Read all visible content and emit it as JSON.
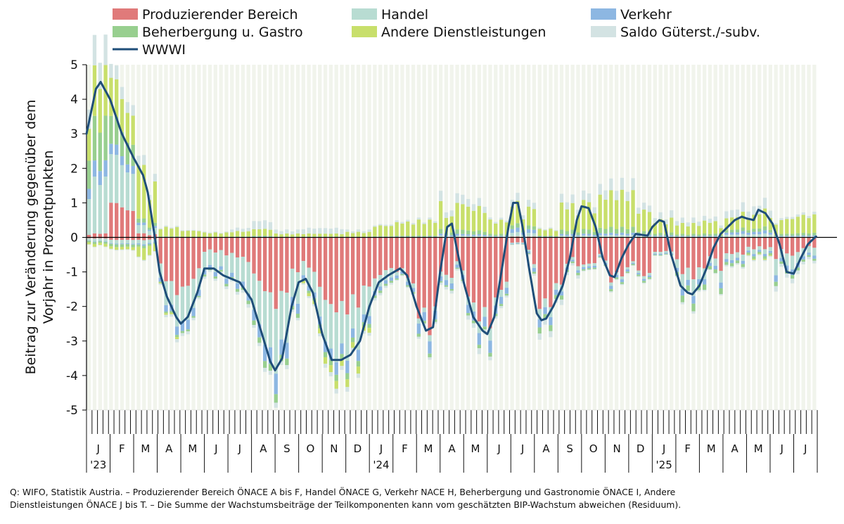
{
  "chart_data": {
    "type": "bar",
    "stacked": true,
    "ylabel_lines": [
      "Beitrag zur Veränderung gegenüber dem",
      "Vorjahr in Prozentpunkten"
    ],
    "ylim": [
      -5,
      5
    ],
    "yticks": [
      5,
      4,
      3,
      2,
      1,
      0,
      -1,
      -2,
      -3,
      -4,
      -5
    ],
    "grid": "vertical light bands",
    "legend_position": "top",
    "month_labels": [
      "J",
      "F",
      "M",
      "A",
      "M",
      "J",
      "J",
      "A",
      "S",
      "O",
      "N",
      "D",
      "J",
      "F",
      "M",
      "A",
      "M",
      "J",
      "J",
      "A",
      "S",
      "O",
      "N",
      "D",
      "J",
      "F",
      "M",
      "A",
      "M",
      "J",
      "J"
    ],
    "year_labels": [
      {
        "label": "'23",
        "month_index": 0
      },
      {
        "label": "'24",
        "month_index": 12
      },
      {
        "label": "'25",
        "month_index": 24
      }
    ],
    "weeks_per_month": 4.3,
    "series": [
      {
        "name": "Produzierender Bereich",
        "color": "#e07a7a",
        "kind": "bar"
      },
      {
        "name": "Handel",
        "color": "#b8dcd2",
        "kind": "bar"
      },
      {
        "name": "Verkehr",
        "color": "#8db7e2",
        "kind": "bar"
      },
      {
        "name": "Beherbergung u. Gastro",
        "color": "#98cf8f",
        "kind": "bar"
      },
      {
        "name": "Andere Dienstleistungen",
        "color": "#c8df6b",
        "kind": "bar"
      },
      {
        "name": "Saldo Güterst./-subv.",
        "color": "#d3e3e3",
        "kind": "bar"
      },
      {
        "name": "WWWI",
        "color": "#1f4e79",
        "kind": "line"
      }
    ],
    "wwwi_anchors": [
      [
        0.0,
        3.0
      ],
      [
        0.4,
        4.3
      ],
      [
        0.6,
        4.5
      ],
      [
        1.0,
        4.0
      ],
      [
        1.5,
        3.0
      ],
      [
        2.0,
        2.3
      ],
      [
        2.4,
        1.8
      ],
      [
        2.6,
        1.3
      ],
      [
        2.9,
        0.0
      ],
      [
        3.1,
        -1.0
      ],
      [
        3.4,
        -1.7
      ],
      [
        3.8,
        -2.3
      ],
      [
        4.0,
        -2.5
      ],
      [
        4.3,
        -2.3
      ],
      [
        4.7,
        -1.6
      ],
      [
        5.0,
        -0.9
      ],
      [
        5.4,
        -0.9
      ],
      [
        5.8,
        -1.1
      ],
      [
        6.5,
        -1.3
      ],
      [
        7.0,
        -1.8
      ],
      [
        7.4,
        -2.7
      ],
      [
        7.8,
        -3.6
      ],
      [
        8.0,
        -3.85
      ],
      [
        8.3,
        -3.5
      ],
      [
        8.7,
        -2.0
      ],
      [
        9.0,
        -1.3
      ],
      [
        9.3,
        -1.2
      ],
      [
        9.6,
        -1.6
      ],
      [
        10.0,
        -2.8
      ],
      [
        10.4,
        -3.55
      ],
      [
        10.8,
        -3.55
      ],
      [
        11.2,
        -3.4
      ],
      [
        11.6,
        -3.0
      ],
      [
        12.0,
        -2.0
      ],
      [
        12.4,
        -1.3
      ],
      [
        12.8,
        -1.1
      ],
      [
        13.3,
        -0.9
      ],
      [
        13.6,
        -1.1
      ],
      [
        14.0,
        -2.0
      ],
      [
        14.4,
        -2.7
      ],
      [
        14.7,
        -2.6
      ],
      [
        15.0,
        -1.0
      ],
      [
        15.3,
        0.3
      ],
      [
        15.5,
        0.4
      ],
      [
        15.7,
        -0.3
      ],
      [
        16.0,
        -1.3
      ],
      [
        16.4,
        -2.3
      ],
      [
        16.8,
        -2.7
      ],
      [
        17.0,
        -2.8
      ],
      [
        17.3,
        -2.3
      ],
      [
        17.6,
        -1.0
      ],
      [
        17.9,
        0.3
      ],
      [
        18.1,
        1.0
      ],
      [
        18.3,
        1.0
      ],
      [
        18.5,
        0.3
      ],
      [
        18.8,
        -1.0
      ],
      [
        19.1,
        -2.2
      ],
      [
        19.3,
        -2.4
      ],
      [
        19.5,
        -2.35
      ],
      [
        19.8,
        -2.0
      ],
      [
        20.2,
        -1.4
      ],
      [
        20.5,
        -0.6
      ],
      [
        20.8,
        0.5
      ],
      [
        21.0,
        0.9
      ],
      [
        21.3,
        0.85
      ],
      [
        21.6,
        0.3
      ],
      [
        21.9,
        -0.6
      ],
      [
        22.2,
        -1.1
      ],
      [
        22.4,
        -1.15
      ],
      [
        22.7,
        -0.6
      ],
      [
        23.0,
        -0.2
      ],
      [
        23.3,
        0.1
      ],
      [
        23.8,
        0.05
      ],
      [
        24.0,
        0.3
      ],
      [
        24.3,
        0.5
      ],
      [
        24.5,
        0.45
      ],
      [
        24.8,
        -0.5
      ],
      [
        25.2,
        -1.4
      ],
      [
        25.5,
        -1.6
      ],
      [
        25.7,
        -1.65
      ],
      [
        26.0,
        -1.4
      ],
      [
        26.3,
        -0.9
      ],
      [
        26.6,
        -0.3
      ],
      [
        26.9,
        0.1
      ],
      [
        27.2,
        0.3
      ],
      [
        27.5,
        0.5
      ],
      [
        27.8,
        0.6
      ],
      [
        28.0,
        0.55
      ],
      [
        28.3,
        0.5
      ],
      [
        28.5,
        0.8
      ],
      [
        28.8,
        0.7
      ],
      [
        29.1,
        0.4
      ],
      [
        29.4,
        -0.2
      ],
      [
        29.7,
        -1.0
      ],
      [
        30.0,
        -1.05
      ],
      [
        30.3,
        -0.6
      ],
      [
        30.6,
        -0.2
      ],
      [
        30.9,
        0.0
      ],
      [
        31.0,
        0.05
      ]
    ],
    "shares_by_month": [
      [
        0.12,
        0.3,
        0.05,
        0.2,
        0.28,
        0.05
      ],
      [
        0.2,
        0.28,
        0.06,
        0.2,
        0.21,
        0.05
      ],
      [
        0.12,
        0.18,
        0.06,
        0.1,
        0.5,
        0.04
      ],
      [
        0.55,
        0.3,
        0.08,
        0.02,
        0.02,
        0.03
      ],
      [
        0.5,
        0.35,
        0.1,
        0.02,
        0.0,
        0.03
      ],
      [
        0.35,
        0.45,
        0.1,
        0.05,
        0.0,
        0.05
      ],
      [
        0.35,
        0.45,
        0.1,
        0.05,
        0.0,
        0.05
      ],
      [
        0.4,
        0.4,
        0.12,
        0.05,
        0.0,
        0.03
      ],
      [
        0.42,
        0.38,
        0.12,
        0.05,
        0.0,
        0.03
      ],
      [
        0.5,
        0.3,
        0.08,
        0.04,
        0.05,
        0.03
      ],
      [
        0.48,
        0.32,
        0.08,
        0.04,
        0.05,
        0.03
      ],
      [
        0.5,
        0.3,
        0.08,
        0.04,
        0.05,
        0.03
      ],
      [
        0.65,
        0.2,
        0.07,
        0.04,
        0.0,
        0.04
      ],
      [
        0.8,
        0.08,
        0.07,
        0.03,
        0.0,
        0.02
      ],
      [
        0.8,
        0.05,
        0.1,
        0.03,
        0.0,
        0.02
      ],
      [
        0.72,
        0.1,
        0.1,
        0.03,
        0.0,
        0.05
      ],
      [
        0.72,
        0.1,
        0.1,
        0.03,
        0.0,
        0.05
      ],
      [
        0.74,
        0.1,
        0.1,
        0.03,
        0.0,
        0.03
      ],
      [
        0.7,
        0.1,
        0.1,
        0.05,
        0.0,
        0.05
      ],
      [
        0.7,
        0.1,
        0.08,
        0.06,
        0.0,
        0.06
      ],
      [
        0.7,
        0.1,
        0.06,
        0.06,
        0.0,
        0.08
      ],
      [
        0.8,
        0.08,
        0.06,
        0.04,
        0.0,
        0.02
      ],
      [
        0.82,
        0.06,
        0.06,
        0.04,
        0.0,
        0.02
      ],
      [
        0.84,
        0.06,
        0.04,
        0.04,
        0.0,
        0.02
      ],
      [
        0.78,
        0.1,
        0.06,
        0.04,
        0.0,
        0.02
      ],
      [
        0.55,
        0.22,
        0.1,
        0.1,
        0.0,
        0.03
      ],
      [
        0.58,
        0.2,
        0.1,
        0.1,
        0.0,
        0.02
      ],
      [
        0.55,
        0.2,
        0.1,
        0.1,
        0.0,
        0.05
      ],
      [
        0.5,
        0.2,
        0.1,
        0.1,
        0.05,
        0.05
      ],
      [
        0.4,
        0.3,
        0.12,
        0.08,
        0.0,
        0.1
      ],
      [
        0.4,
        0.3,
        0.12,
        0.08,
        0.0,
        0.1
      ]
    ],
    "pos_shares_by_month": [
      [
        0.02,
        0.28,
        0.08,
        0.22,
        0.25,
        0.15
      ],
      [
        0.2,
        0.28,
        0.06,
        0.16,
        0.22,
        0.08
      ],
      [
        0.05,
        0.1,
        0.03,
        0.05,
        0.65,
        0.12
      ],
      [
        0.0,
        0.02,
        0.02,
        0.06,
        0.8,
        0.1
      ],
      [
        0.0,
        0.02,
        0.02,
        0.06,
        0.8,
        0.1
      ],
      [
        0.0,
        0.02,
        0.02,
        0.06,
        0.75,
        0.15
      ],
      [
        0.0,
        0.02,
        0.02,
        0.06,
        0.55,
        0.35
      ],
      [
        0.0,
        0.02,
        0.02,
        0.06,
        0.4,
        0.5
      ],
      [
        0.0,
        0.02,
        0.02,
        0.06,
        0.4,
        0.5
      ],
      [
        0.0,
        0.02,
        0.02,
        0.06,
        0.3,
        0.6
      ],
      [
        0.0,
        0.02,
        0.02,
        0.06,
        0.3,
        0.6
      ],
      [
        0.0,
        0.02,
        0.02,
        0.06,
        0.6,
        0.3
      ],
      [
        0.0,
        0.02,
        0.02,
        0.06,
        0.8,
        0.1
      ],
      [
        0.0,
        0.02,
        0.02,
        0.06,
        0.8,
        0.1
      ],
      [
        0.0,
        0.02,
        0.02,
        0.06,
        0.8,
        0.1
      ],
      [
        0.0,
        0.04,
        0.04,
        0.1,
        0.6,
        0.22
      ],
      [
        0.0,
        0.04,
        0.04,
        0.1,
        0.62,
        0.2
      ],
      [
        0.0,
        0.04,
        0.04,
        0.1,
        0.72,
        0.1
      ],
      [
        0.02,
        0.1,
        0.1,
        0.1,
        0.5,
        0.18
      ],
      [
        0.0,
        0.04,
        0.04,
        0.1,
        0.7,
        0.12
      ],
      [
        0.0,
        0.04,
        0.04,
        0.1,
        0.62,
        0.2
      ],
      [
        0.0,
        0.04,
        0.04,
        0.1,
        0.62,
        0.2
      ],
      [
        0.0,
        0.04,
        0.04,
        0.1,
        0.62,
        0.2
      ],
      [
        0.0,
        0.04,
        0.04,
        0.1,
        0.62,
        0.2
      ],
      [
        0.0,
        0.04,
        0.04,
        0.1,
        0.55,
        0.27
      ],
      [
        0.0,
        0.04,
        0.04,
        0.1,
        0.55,
        0.27
      ],
      [
        0.0,
        0.04,
        0.04,
        0.1,
        0.6,
        0.22
      ],
      [
        0.0,
        0.1,
        0.08,
        0.1,
        0.45,
        0.27
      ],
      [
        0.0,
        0.1,
        0.08,
        0.1,
        0.45,
        0.27
      ],
      [
        0.0,
        0.04,
        0.04,
        0.1,
        0.72,
        0.1
      ],
      [
        0.0,
        0.04,
        0.04,
        0.1,
        0.72,
        0.1
      ]
    ],
    "pos_totals_by_month": [
      3.9,
      4.5,
      1.6,
      0.3,
      0.2,
      0.15,
      0.25,
      0.45,
      0.2,
      0.25,
      0.25,
      0.2,
      0.35,
      0.45,
      0.5,
      1.2,
      1.0,
      0.5,
      1.0,
      0.25,
      1.1,
      1.4,
      1.5,
      1.5,
      0.7,
      0.5,
      0.55,
      1.2,
      1.1,
      0.55,
      0.65
    ],
    "neg_totals_by_month": [
      0.25,
      0.35,
      0.6,
      2.6,
      2.2,
      1.1,
      1.3,
      3.2,
      3.5,
      1.4,
      3.3,
      3.0,
      1.6,
      1.2,
      2.9,
      1.5,
      2.9,
      3.0,
      0.2,
      2.3,
      1.2,
      0.9,
      2.0,
      1.2,
      0.5,
      1.8,
      1.6,
      0.8,
      0.6,
      1.4,
      1.1
    ]
  },
  "footnote_lines": [
    "Q: WIFO, Statistik Austria. – Produzierender Bereich ÖNACE A bis F, Handel ÖNACE G, Verkehr NACE H, Beherbergung und Gastronomie ÖNACE I, Andere",
    "Dienstleistungen ÖNACE  J bis T. – Die Summe der Wachstumsbeiträge der Teilkomponenten kann vom geschätzten BIP-Wachstum abweichen (Residuum)."
  ]
}
